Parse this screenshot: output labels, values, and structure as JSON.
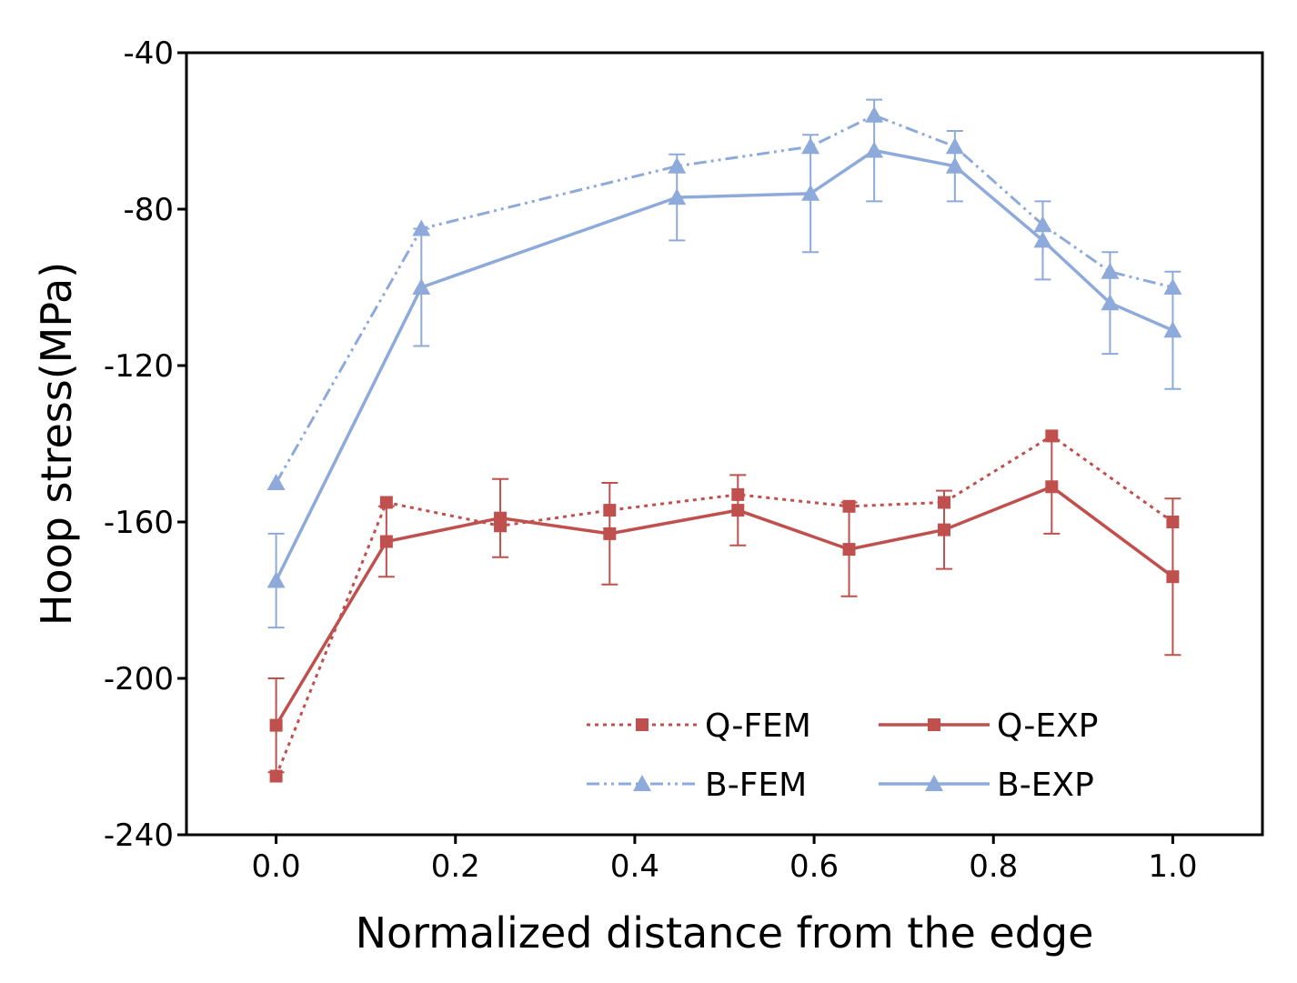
{
  "chart_data": {
    "type": "line",
    "title": "",
    "xlabel": "Normalized distance from the edge",
    "ylabel": "Hoop stress(MPa)",
    "xlim": [
      -0.1,
      1.1
    ],
    "ylim": [
      -240,
      -40
    ],
    "xticks": [
      0.0,
      0.2,
      0.4,
      0.6,
      0.8,
      1.0
    ],
    "xtick_labels": [
      "0.0",
      "0.2",
      "0.4",
      "0.6",
      "0.8",
      "1.0"
    ],
    "yticks": [
      -40,
      -80,
      -120,
      -160,
      -200,
      -240
    ],
    "ytick_labels": [
      "-40",
      "-80",
      "-120",
      "-160",
      "-200",
      "-240"
    ],
    "legend_position": "bottom-right",
    "series": [
      {
        "name": "Q-FEM",
        "color": "#c0504d",
        "line_style": "dotted",
        "marker": "square",
        "x": [
          0.0,
          0.123,
          0.25,
          0.372,
          0.515,
          0.639,
          0.745,
          0.865,
          1.0
        ],
        "y": [
          -225,
          -155,
          -161,
          -157,
          -153,
          -156,
          -155,
          -138,
          -160
        ]
      },
      {
        "name": "Q-EXP",
        "color": "#c0504d",
        "line_style": "solid",
        "marker": "square",
        "x": [
          0.0,
          0.123,
          0.25,
          0.372,
          0.515,
          0.639,
          0.745,
          0.865,
          1.0
        ],
        "y": [
          -212,
          -165,
          -159,
          -163,
          -157,
          -167,
          -162,
          -151,
          -174
        ],
        "error": [
          12,
          9,
          10,
          13,
          9,
          12,
          10,
          12,
          20
        ]
      },
      {
        "name": "B-FEM",
        "color": "#8eaadb",
        "line_style": "dash-dot-dot",
        "marker": "triangle",
        "x": [
          0.0,
          0.162,
          0.447,
          0.596,
          0.667,
          0.757,
          0.855,
          0.93,
          1.0
        ],
        "y": [
          -150,
          -85,
          -69,
          -64,
          -56,
          -64,
          -84,
          -96,
          -100
        ]
      },
      {
        "name": "B-EXP",
        "color": "#8eaadb",
        "line_style": "solid",
        "marker": "triangle",
        "x": [
          0.0,
          0.162,
          0.447,
          0.596,
          0.667,
          0.757,
          0.855,
          0.93,
          1.0
        ],
        "y": [
          -175,
          -100,
          -77,
          -76,
          -65,
          -69,
          -88,
          -104,
          -111
        ],
        "error": [
          12,
          15,
          11,
          15,
          13,
          9,
          10,
          13,
          15
        ]
      }
    ]
  }
}
